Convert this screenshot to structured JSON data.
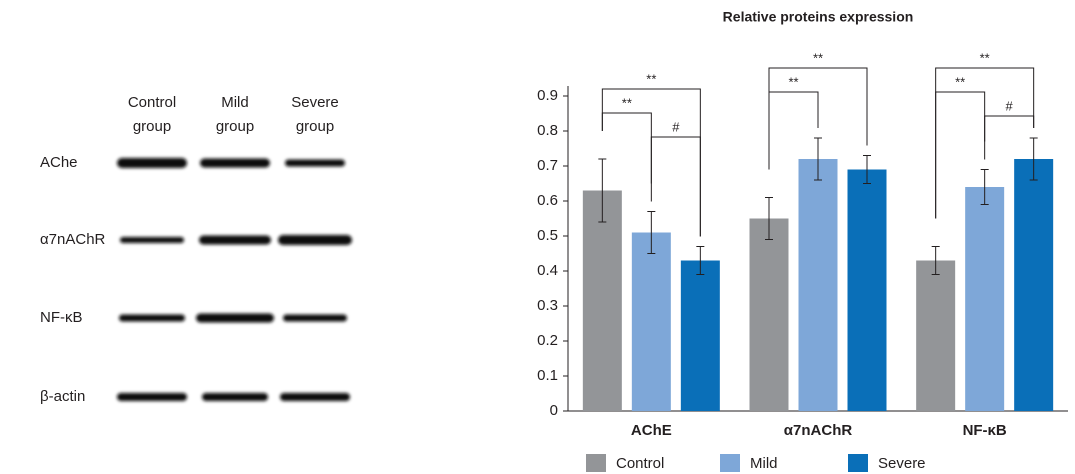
{
  "blot": {
    "columns": [
      [
        "Control",
        "group"
      ],
      [
        "Mild",
        "group"
      ],
      [
        "Severe",
        "group"
      ]
    ],
    "rows": [
      "AChe",
      "α7nAChR",
      "NF-κB",
      "β-actin"
    ]
  },
  "chart_data": {
    "type": "bar",
    "title": "Relative proteins expression",
    "categories": [
      "AChE",
      "α7nAChR",
      "NF-κB"
    ],
    "series": [
      {
        "name": "Control",
        "color": "#939598",
        "values": [
          0.63,
          0.55,
          0.43
        ],
        "errors": [
          0.09,
          0.06,
          0.04
        ]
      },
      {
        "name": "Mild",
        "color": "#7ea7d8",
        "values": [
          0.51,
          0.72,
          0.64
        ],
        "errors": [
          0.06,
          0.06,
          0.05
        ]
      },
      {
        "name": "Severe",
        "color": "#0a6fb8",
        "values": [
          0.43,
          0.69,
          0.72
        ],
        "errors": [
          0.04,
          0.04,
          0.06
        ]
      }
    ],
    "ylim": [
      0,
      0.9
    ],
    "yticks": [
      0,
      0.1,
      0.2,
      0.3,
      0.4,
      0.5,
      0.6,
      0.7,
      0.8,
      0.9
    ],
    "annotations": [
      {
        "text": "**",
        "group": 0,
        "from": 0,
        "to": 1
      },
      {
        "text": "**",
        "group": 0,
        "from": 0,
        "to": 2
      },
      {
        "text": "#",
        "group": 0,
        "from": 1,
        "to": 2
      },
      {
        "text": "**",
        "group": 1,
        "from": 0,
        "to": 1
      },
      {
        "text": "**",
        "group": 1,
        "from": 0,
        "to": 2
      },
      {
        "text": "**",
        "group": 2,
        "from": 0,
        "to": 1
      },
      {
        "text": "**",
        "group": 2,
        "from": 0,
        "to": 2
      },
      {
        "text": "#",
        "group": 2,
        "from": 1,
        "to": 2
      }
    ]
  }
}
